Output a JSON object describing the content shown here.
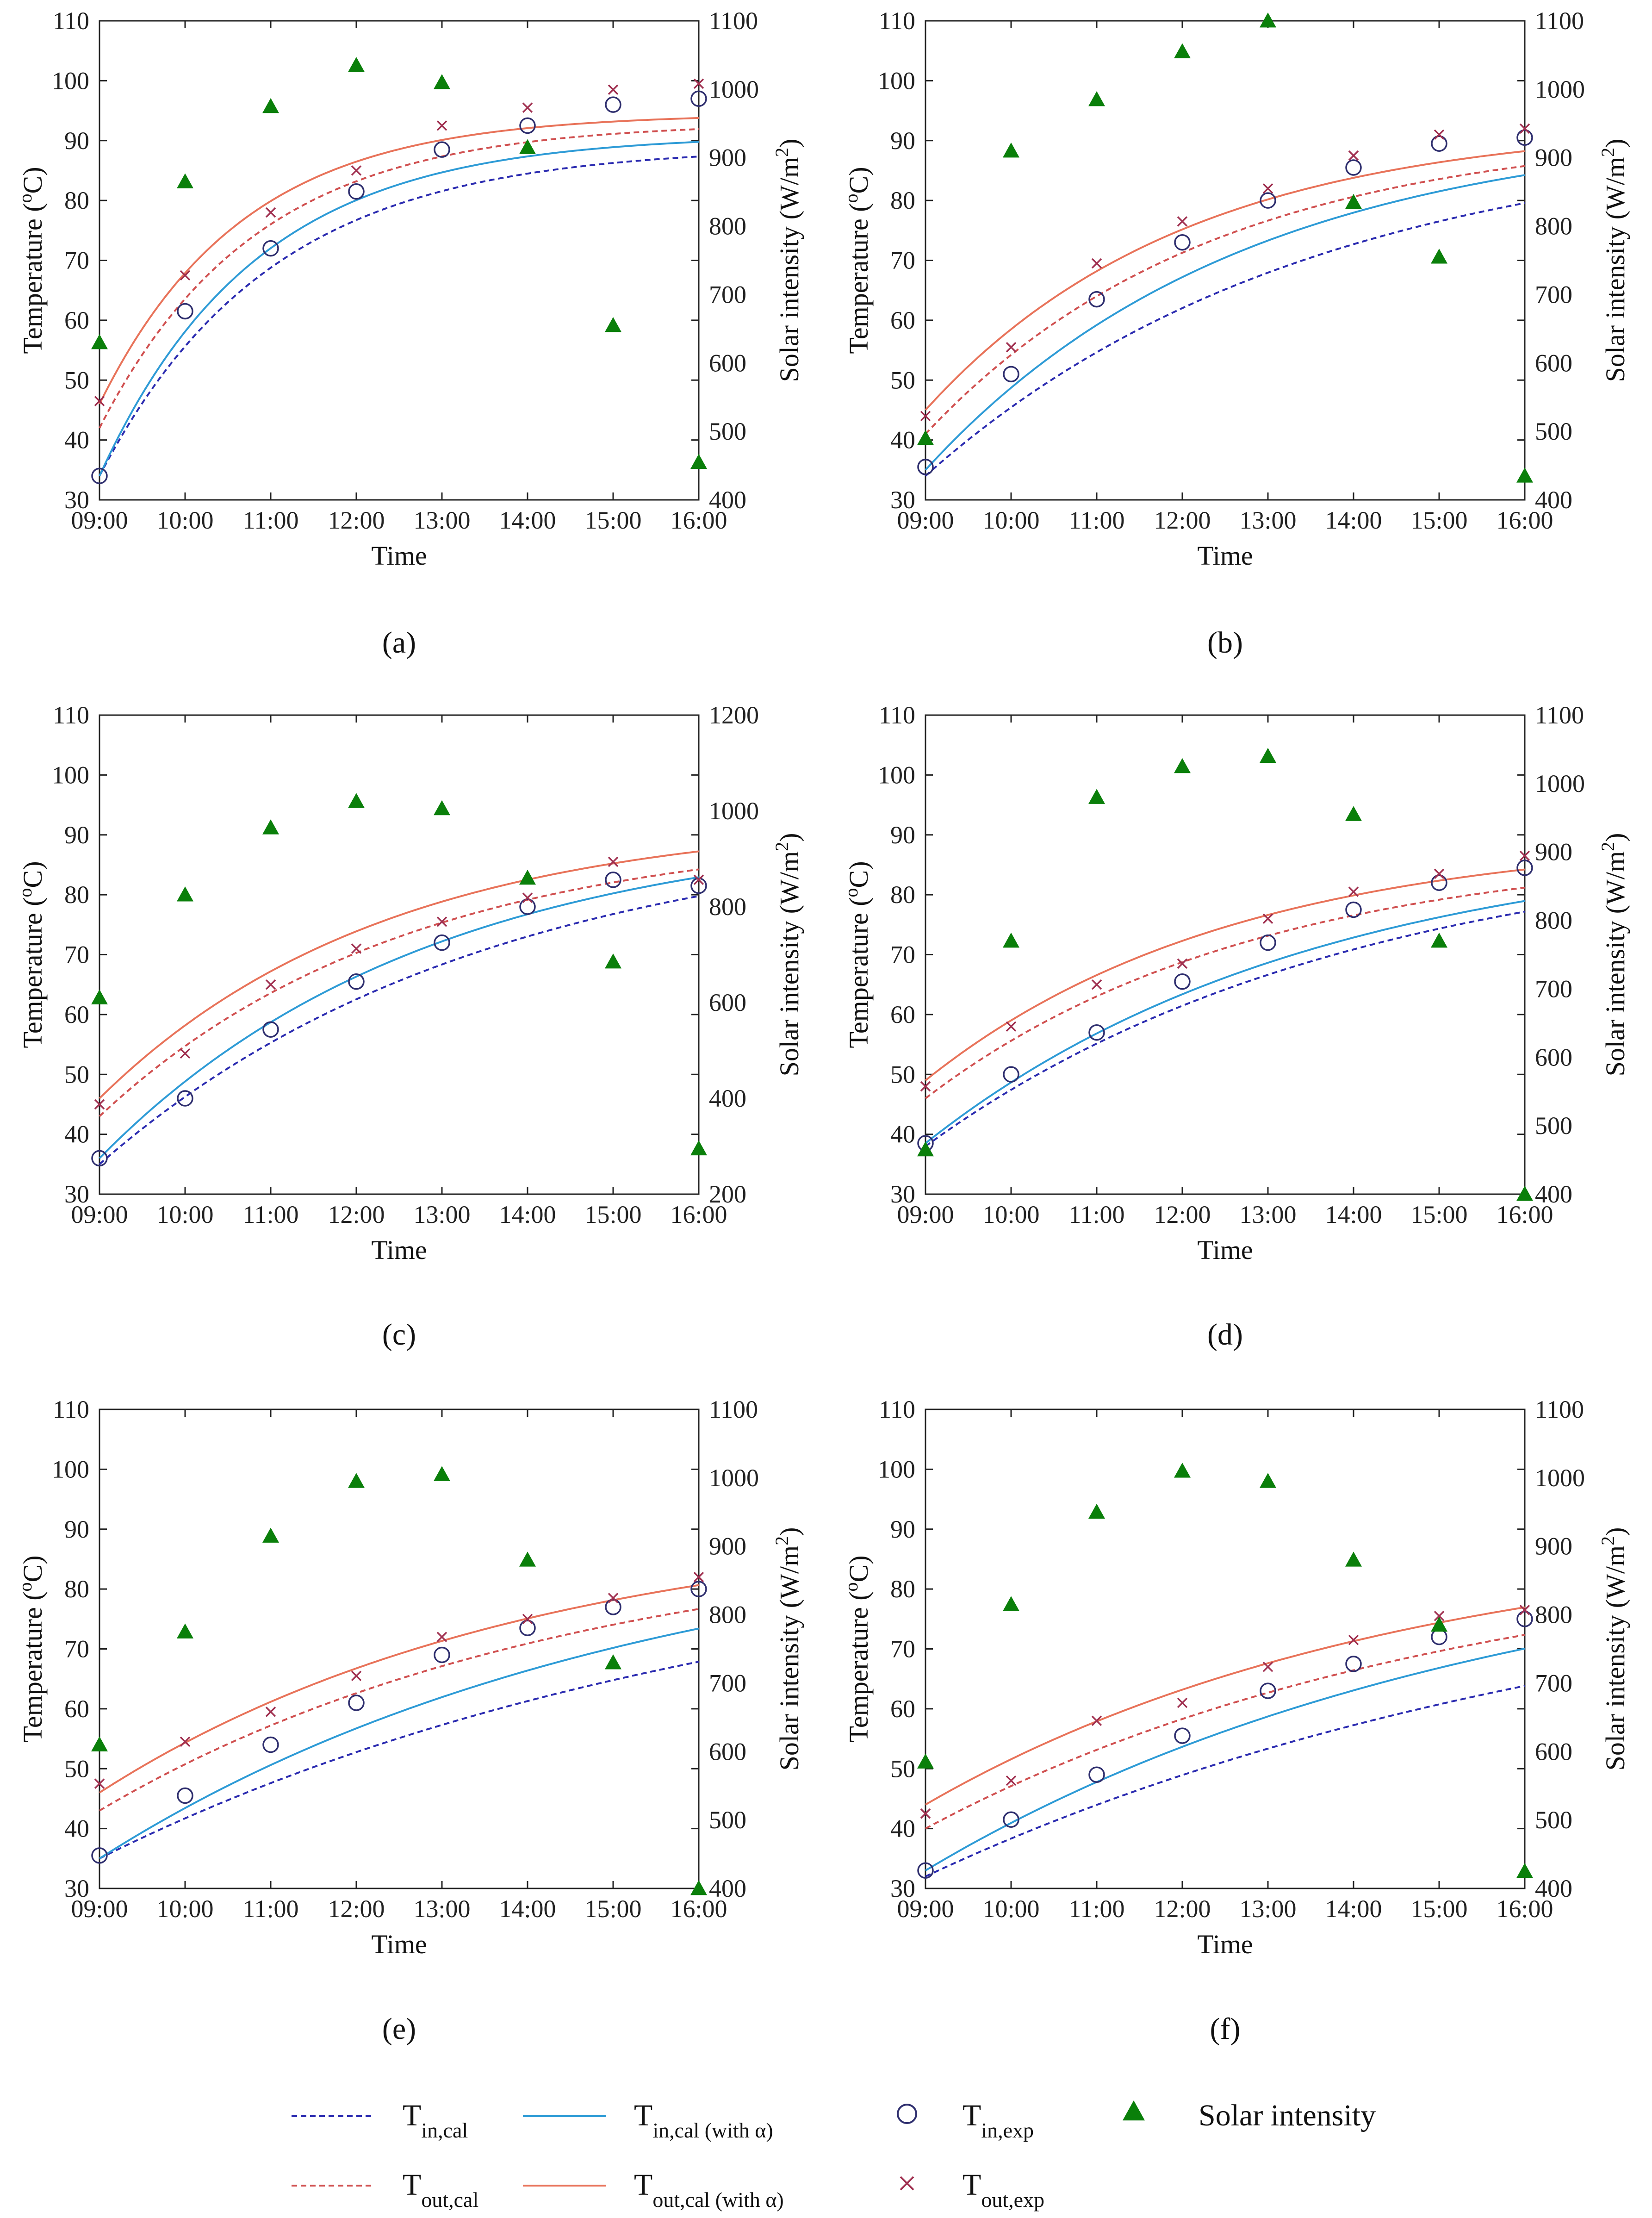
{
  "legend": [
    {
      "key": "tin_cal",
      "main": "T",
      "sub": "in,cal",
      "extra": "",
      "style": "dashed",
      "color": "#2b2bb0"
    },
    {
      "key": "tin_cal_a",
      "main": "T",
      "sub": "in,cal",
      "extra": " (with α)",
      "style": "solid",
      "color": "#2e9bd6"
    },
    {
      "key": "tin_exp",
      "main": "T",
      "sub": "in,exp",
      "extra": "",
      "style": "circle",
      "color": "#2e2e6e"
    },
    {
      "key": "solar",
      "main": "Solar intensity",
      "sub": "",
      "extra": "",
      "style": "triangle",
      "color": "#0a7f0a"
    },
    {
      "key": "tout_cal",
      "main": "T",
      "sub": "out,cal",
      "extra": "",
      "style": "dashed",
      "color": "#d05050"
    },
    {
      "key": "tout_cal_a",
      "main": "T",
      "sub": "out,cal",
      "extra": " (with α)",
      "style": "solid",
      "color": "#e8735a"
    },
    {
      "key": "tout_exp",
      "main": "T",
      "sub": "out,exp",
      "extra": "",
      "style": "cross",
      "color": "#a03050"
    }
  ],
  "chart_data": [
    {
      "label": "(a)",
      "type": "scatter",
      "xlabel": "Time",
      "ylabel": "Temperature (°C)",
      "ylabel2": "Solar intensity (W/m²)",
      "categories": [
        "09:00",
        "10:00",
        "11:00",
        "12:00",
        "13:00",
        "14:00",
        "15:00",
        "16:00"
      ],
      "ylim": [
        30,
        110
      ],
      "yticks": [
        30,
        40,
        50,
        60,
        70,
        80,
        90,
        100,
        110
      ],
      "y2lim": [
        400,
        1100
      ],
      "y2ticks": [
        400,
        500,
        600,
        700,
        800,
        900,
        1000,
        1100
      ],
      "series": [
        {
          "name": "Tin,cal",
          "kind": "curve",
          "dash": true,
          "color": "#2b2bb0",
          "start": 34,
          "end": 89,
          "k": 0.5
        },
        {
          "name": "Tin,cal (with α)",
          "kind": "curve",
          "dash": false,
          "color": "#2e9bd6",
          "start": 34,
          "end": 91,
          "k": 0.55
        },
        {
          "name": "Tout,cal",
          "kind": "curve",
          "dash": true,
          "color": "#d05050",
          "start": 42,
          "end": 93,
          "k": 0.55
        },
        {
          "name": "Tout,cal (with α)",
          "kind": "curve",
          "dash": false,
          "color": "#e8735a",
          "start": 46,
          "end": 94.5,
          "k": 0.6
        },
        {
          "name": "Tin,exp",
          "kind": "circle",
          "color": "#2e2e6e",
          "values": [
            34,
            61.5,
            72,
            81.5,
            88.5,
            92.5,
            96,
            97
          ]
        },
        {
          "name": "Tout,exp",
          "kind": "cross",
          "color": "#a03050",
          "values": [
            46.5,
            67.5,
            78,
            85,
            92.5,
            95.5,
            98.5,
            99.5
          ]
        },
        {
          "name": "Solar intensity",
          "kind": "triangle",
          "axis": "right",
          "color": "#0a7f0a",
          "values": [
            630,
            865,
            975,
            1035,
            1010,
            915,
            655,
            455
          ]
        }
      ]
    },
    {
      "label": "(b)",
      "type": "scatter",
      "xlabel": "Time",
      "ylabel": "Temperature (°C)",
      "ylabel2": "Solar intensity (W/m²)",
      "categories": [
        "09:00",
        "10:00",
        "11:00",
        "12:00",
        "13:00",
        "14:00",
        "15:00",
        "16:00"
      ],
      "ylim": [
        30,
        110
      ],
      "yticks": [
        30,
        40,
        50,
        60,
        70,
        80,
        90,
        100,
        110
      ],
      "y2lim": [
        400,
        1100
      ],
      "y2ticks": [
        400,
        500,
        600,
        700,
        800,
        900,
        1000,
        1100
      ],
      "series": [
        {
          "name": "Tin,cal",
          "kind": "curve",
          "dash": true,
          "color": "#2b2bb0",
          "start": 34,
          "end": 92,
          "k": 0.22
        },
        {
          "name": "Tin,cal (with α)",
          "kind": "curve",
          "dash": false,
          "color": "#2e9bd6",
          "start": 35,
          "end": 93,
          "k": 0.27
        },
        {
          "name": "Tout,cal",
          "kind": "curve",
          "dash": true,
          "color": "#d05050",
          "start": 41,
          "end": 92,
          "k": 0.3
        },
        {
          "name": "Tout,cal (with α)",
          "kind": "curve",
          "dash": false,
          "color": "#e8735a",
          "start": 45,
          "end": 93,
          "k": 0.33
        },
        {
          "name": "Tin,exp",
          "kind": "circle",
          "color": "#2e2e6e",
          "values": [
            35.5,
            51,
            63.5,
            73,
            80,
            85.5,
            89.5,
            90.5
          ]
        },
        {
          "name": "Tout,exp",
          "kind": "cross",
          "color": "#a03050",
          "values": [
            44,
            55.5,
            69.5,
            76.5,
            82,
            87.5,
            91,
            92
          ]
        },
        {
          "name": "Solar intensity",
          "kind": "triangle",
          "axis": "right",
          "color": "#0a7f0a",
          "values": [
            490,
            910,
            985,
            1055,
            1100,
            835,
            755,
            435
          ]
        }
      ]
    },
    {
      "label": "(c)",
      "type": "scatter",
      "xlabel": "Time",
      "ylabel": "Temperature (°C)",
      "ylabel2": "Solar intensity (W/m²)",
      "categories": [
        "09:00",
        "10:00",
        "11:00",
        "12:00",
        "13:00",
        "14:00",
        "15:00",
        "16:00"
      ],
      "ylim": [
        30,
        110
      ],
      "yticks": [
        30,
        40,
        50,
        60,
        70,
        80,
        90,
        100,
        110
      ],
      "y2lim": [
        200,
        1200
      ],
      "y2ticks": [
        200,
        400,
        600,
        800,
        1000,
        1200
      ],
      "series": [
        {
          "name": "Tin,cal",
          "kind": "curve",
          "dash": true,
          "color": "#2b2bb0",
          "start": 35,
          "end": 92,
          "k": 0.22
        },
        {
          "name": "Tin,cal (with α)",
          "kind": "curve",
          "dash": false,
          "color": "#2e9bd6",
          "start": 36,
          "end": 92,
          "k": 0.26
        },
        {
          "name": "Tout,cal",
          "kind": "curve",
          "dash": true,
          "color": "#d05050",
          "start": 43,
          "end": 91,
          "k": 0.28
        },
        {
          "name": "Tout,cal (with α)",
          "kind": "curve",
          "dash": false,
          "color": "#e8735a",
          "start": 46,
          "end": 93,
          "k": 0.3
        },
        {
          "name": "Tin,exp",
          "kind": "circle",
          "color": "#2e2e6e",
          "values": [
            36,
            46,
            57.5,
            65.5,
            72,
            78,
            82.5,
            81.5
          ]
        },
        {
          "name": "Tout,exp",
          "kind": "cross",
          "color": "#a03050",
          "values": [
            45,
            53.5,
            65,
            71,
            75.5,
            79.5,
            85.5,
            82.5
          ]
        },
        {
          "name": "Solar intensity",
          "kind": "triangle",
          "axis": "right",
          "color": "#0a7f0a",
          "values": [
            610,
            825,
            965,
            1020,
            1005,
            860,
            685,
            295
          ]
        }
      ]
    },
    {
      "label": "(d)",
      "type": "scatter",
      "xlabel": "Time",
      "ylabel": "Temperature (°C)",
      "ylabel2": "Solar intensity (W/m²)",
      "categories": [
        "09:00",
        "10:00",
        "11:00",
        "12:00",
        "13:00",
        "14:00",
        "15:00",
        "16:00"
      ],
      "ylim": [
        30,
        110
      ],
      "yticks": [
        30,
        40,
        50,
        60,
        70,
        80,
        90,
        100,
        110
      ],
      "y2lim": [
        400,
        1100
      ],
      "y2ticks": [
        400,
        500,
        600,
        700,
        800,
        900,
        1000,
        1100
      ],
      "series": [
        {
          "name": "Tin,cal",
          "kind": "curve",
          "dash": true,
          "color": "#2b2bb0",
          "start": 38,
          "end": 90,
          "k": 0.2
        },
        {
          "name": "Tin,cal (with α)",
          "kind": "curve",
          "dash": false,
          "color": "#2e9bd6",
          "start": 38.5,
          "end": 90,
          "k": 0.22
        },
        {
          "name": "Tout,cal",
          "kind": "curve",
          "dash": true,
          "color": "#d05050",
          "start": 46,
          "end": 88,
          "k": 0.26
        },
        {
          "name": "Tout,cal (with α)",
          "kind": "curve",
          "dash": false,
          "color": "#e8735a",
          "start": 49,
          "end": 90,
          "k": 0.28
        },
        {
          "name": "Tin,exp",
          "kind": "circle",
          "color": "#2e2e6e",
          "values": [
            38.5,
            50,
            57,
            65.5,
            72,
            77.5,
            82,
            84.5
          ]
        },
        {
          "name": "Tout,exp",
          "kind": "cross",
          "color": "#a03050",
          "values": [
            48,
            58,
            65,
            68.5,
            76,
            80.5,
            83.5,
            86.5
          ]
        },
        {
          "name": "Solar intensity",
          "kind": "triangle",
          "axis": "right",
          "color": "#0a7f0a",
          "values": [
            465,
            770,
            980,
            1025,
            1040,
            955,
            770,
            400
          ]
        }
      ]
    },
    {
      "label": "(e)",
      "type": "scatter",
      "xlabel": "Time",
      "ylabel": "Temperature (°C)",
      "ylabel2": "Solar intensity (W/m²)",
      "categories": [
        "09:00",
        "10:00",
        "11:00",
        "12:00",
        "13:00",
        "14:00",
        "15:00",
        "16:00"
      ],
      "ylim": [
        30,
        110
      ],
      "yticks": [
        30,
        40,
        50,
        60,
        70,
        80,
        90,
        100,
        110
      ],
      "y2lim": [
        400,
        1100
      ],
      "y2ticks": [
        400,
        500,
        600,
        700,
        800,
        900,
        1000,
        1100
      ],
      "series": [
        {
          "name": "Tin,cal",
          "kind": "curve",
          "dash": true,
          "color": "#2b2bb0",
          "start": 35,
          "end": 90,
          "k": 0.13
        },
        {
          "name": "Tin,cal (with α)",
          "kind": "curve",
          "dash": false,
          "color": "#2e9bd6",
          "start": 35,
          "end": 92,
          "k": 0.16
        },
        {
          "name": "Tout,cal",
          "kind": "curve",
          "dash": true,
          "color": "#d05050",
          "start": 43,
          "end": 90,
          "k": 0.18
        },
        {
          "name": "Tout,cal (with α)",
          "kind": "curve",
          "dash": false,
          "color": "#e8735a",
          "start": 46,
          "end": 92,
          "k": 0.2
        },
        {
          "name": "Tin,exp",
          "kind": "circle",
          "color": "#2e2e6e",
          "values": [
            35.5,
            45.5,
            54,
            61,
            69,
            73.5,
            77,
            80
          ]
        },
        {
          "name": "Tout,exp",
          "kind": "cross",
          "color": "#a03050",
          "values": [
            47.5,
            54.5,
            59.5,
            65.5,
            72,
            75,
            78.5,
            82
          ]
        },
        {
          "name": "Solar intensity",
          "kind": "triangle",
          "axis": "right",
          "color": "#0a7f0a",
          "values": [
            610,
            775,
            915,
            995,
            1005,
            880,
            730,
            400
          ]
        }
      ]
    },
    {
      "label": "(f)",
      "type": "scatter",
      "xlabel": "Time",
      "ylabel": "Temperature (°C)",
      "ylabel2": "Solar intensity (W/m²)",
      "categories": [
        "09:00",
        "10:00",
        "11:00",
        "12:00",
        "13:00",
        "14:00",
        "15:00",
        "16:00"
      ],
      "ylim": [
        30,
        110
      ],
      "yticks": [
        30,
        40,
        50,
        60,
        70,
        80,
        90,
        100,
        110
      ],
      "y2lim": [
        400,
        1100
      ],
      "y2ticks": [
        400,
        500,
        600,
        700,
        800,
        900,
        1000,
        1100
      ],
      "series": [
        {
          "name": "Tin,cal",
          "kind": "curve",
          "dash": true,
          "color": "#2b2bb0",
          "start": 32,
          "end": 88,
          "k": 0.12
        },
        {
          "name": "Tin,cal (with α)",
          "kind": "curve",
          "dash": false,
          "color": "#2e9bd6",
          "start": 33,
          "end": 90,
          "k": 0.15
        },
        {
          "name": "Tout,cal",
          "kind": "curve",
          "dash": true,
          "color": "#d05050",
          "start": 40,
          "end": 88,
          "k": 0.16
        },
        {
          "name": "Tout,cal (with α)",
          "kind": "curve",
          "dash": false,
          "color": "#e8735a",
          "start": 44,
          "end": 90,
          "k": 0.18
        },
        {
          "name": "Tin,exp",
          "kind": "circle",
          "color": "#2e2e6e",
          "values": [
            33,
            41.5,
            49,
            55.5,
            63,
            67.5,
            72,
            75
          ]
        },
        {
          "name": "Tout,exp",
          "kind": "cross",
          "color": "#a03050",
          "values": [
            42.5,
            48,
            58,
            61,
            67,
            71.5,
            75.5,
            76.5
          ]
        },
        {
          "name": "Solar intensity",
          "kind": "triangle",
          "axis": "right",
          "color": "#0a7f0a",
          "values": [
            585,
            815,
            950,
            1010,
            995,
            880,
            785,
            425
          ]
        }
      ]
    }
  ]
}
